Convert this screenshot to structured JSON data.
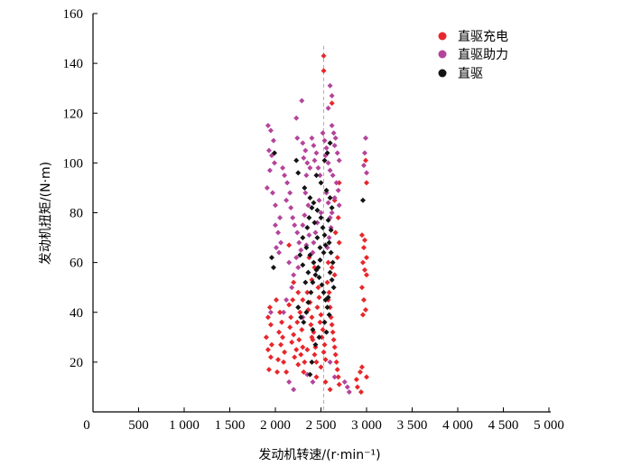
{
  "chart_data": {
    "type": "scatter",
    "title": "",
    "xlabel": "发动机转速/(r·min⁻¹)",
    "ylabel": "发动机扭矩/(N·m)",
    "xlim": [
      0,
      5000
    ],
    "ylim": [
      0,
      160
    ],
    "x_ticks": [
      500,
      1000,
      1500,
      2000,
      2500,
      3000,
      3500,
      4000,
      4500,
      5000
    ],
    "x_tick_labels": [
      "500",
      "1 000",
      "1 500",
      "2 000",
      "2 500",
      "3 000",
      "3 500",
      "4 000",
      "4 500",
      "5 000"
    ],
    "y_ticks": [
      20,
      40,
      60,
      80,
      100,
      120,
      140,
      160
    ],
    "y_tick_labels": [
      "20",
      "40",
      "60",
      "80",
      "100",
      "120",
      "140",
      "160"
    ],
    "origin_label": "0",
    "grid": false,
    "legend_position": "top-right",
    "reference_line": {
      "x": 2530,
      "style": "dashed"
    },
    "series": [
      {
        "name": "直驱充电",
        "color": "#e8262b",
        "points": [
          [
            2530,
            143
          ],
          [
            2530,
            137
          ],
          [
            2620,
            124
          ],
          [
            2700,
            92
          ],
          [
            2650,
            85
          ],
          [
            2990,
            101
          ],
          [
            3000,
            92
          ],
          [
            2950,
            71
          ],
          [
            2980,
            69
          ],
          [
            2970,
            66
          ],
          [
            3000,
            62
          ],
          [
            2960,
            60
          ],
          [
            2980,
            57
          ],
          [
            3000,
            55
          ],
          [
            2950,
            50
          ],
          [
            2970,
            45
          ],
          [
            2990,
            41
          ],
          [
            2960,
            39
          ],
          [
            2950,
            18
          ],
          [
            2930,
            16
          ],
          [
            3000,
            14
          ],
          [
            2900,
            10
          ],
          [
            2940,
            8
          ],
          [
            2890,
            13
          ],
          [
            1940,
            42
          ],
          [
            1920,
            38
          ],
          [
            1950,
            35
          ],
          [
            1900,
            30
          ],
          [
            1960,
            27
          ],
          [
            1920,
            25
          ],
          [
            1950,
            22
          ],
          [
            1930,
            17
          ],
          [
            2020,
            16
          ],
          [
            2010,
            45
          ],
          [
            2050,
            40
          ],
          [
            2070,
            36
          ],
          [
            2040,
            32
          ],
          [
            2080,
            30
          ],
          [
            2060,
            27
          ],
          [
            2100,
            24
          ],
          [
            2030,
            21
          ],
          [
            2090,
            20
          ],
          [
            2120,
            16
          ],
          [
            2150,
            43
          ],
          [
            2170,
            38
          ],
          [
            2160,
            34
          ],
          [
            2200,
            31
          ],
          [
            2180,
            28
          ],
          [
            2230,
            25
          ],
          [
            2210,
            22
          ],
          [
            2250,
            19
          ],
          [
            2190,
            45
          ],
          [
            2270,
            40
          ],
          [
            2240,
            36
          ],
          [
            2290,
            33
          ],
          [
            2260,
            29
          ],
          [
            2300,
            26
          ],
          [
            2280,
            23
          ],
          [
            2320,
            20
          ],
          [
            2310,
            16
          ],
          [
            2350,
            48
          ],
          [
            2380,
            44
          ],
          [
            2360,
            41
          ],
          [
            2400,
            38
          ],
          [
            2390,
            35
          ],
          [
            2420,
            32
          ],
          [
            2410,
            29
          ],
          [
            2440,
            26
          ],
          [
            2430,
            23
          ],
          [
            2450,
            20
          ],
          [
            2470,
            50
          ],
          [
            2480,
            46
          ],
          [
            2460,
            42
          ],
          [
            2500,
            39
          ],
          [
            2490,
            36
          ],
          [
            2520,
            33
          ],
          [
            2510,
            30
          ],
          [
            2540,
            27
          ],
          [
            2530,
            24
          ],
          [
            2550,
            21
          ],
          [
            2570,
            52
          ],
          [
            2590,
            48
          ],
          [
            2580,
            45
          ],
          [
            2600,
            42
          ],
          [
            2610,
            38
          ],
          [
            2620,
            35
          ],
          [
            2630,
            32
          ],
          [
            2640,
            29
          ],
          [
            2650,
            26
          ],
          [
            2660,
            23
          ],
          [
            2670,
            20
          ],
          [
            2680,
            17
          ],
          [
            2690,
            14
          ],
          [
            2700,
            11
          ],
          [
            2580,
            60
          ],
          [
            2620,
            58
          ],
          [
            2650,
            55
          ],
          [
            2680,
            62
          ],
          [
            2700,
            68
          ],
          [
            2660,
            72
          ],
          [
            2690,
            78
          ],
          [
            2400,
            53
          ],
          [
            2430,
            58
          ],
          [
            2370,
            62
          ],
          [
            2300,
            45
          ],
          [
            2250,
            48
          ],
          [
            2200,
            52
          ],
          [
            2150,
            67
          ],
          [
            2400,
            30
          ],
          [
            2350,
            25
          ],
          [
            2450,
            14
          ],
          [
            2500,
            18
          ],
          [
            2550,
            12
          ],
          [
            2600,
            9
          ]
        ]
      },
      {
        "name": "直驱助力",
        "color": "#b4449b",
        "points": [
          [
            2600,
            131
          ],
          [
            2620,
            127
          ],
          [
            2580,
            122
          ],
          [
            2290,
            125
          ],
          [
            2230,
            118
          ],
          [
            2240,
            110
          ],
          [
            1920,
            115
          ],
          [
            1950,
            113
          ],
          [
            1980,
            109
          ],
          [
            1930,
            105
          ],
          [
            1960,
            103
          ],
          [
            1990,
            100
          ],
          [
            1940,
            97
          ],
          [
            1910,
            90
          ],
          [
            1970,
            88
          ],
          [
            2000,
            83
          ],
          [
            2050,
            78
          ],
          [
            2000,
            75
          ],
          [
            2030,
            72
          ],
          [
            2060,
            68
          ],
          [
            2010,
            66
          ],
          [
            2040,
            64
          ],
          [
            2080,
            98
          ],
          [
            2100,
            95
          ],
          [
            2130,
            92
          ],
          [
            2160,
            88
          ],
          [
            2120,
            85
          ],
          [
            2170,
            82
          ],
          [
            2190,
            78
          ],
          [
            2210,
            75
          ],
          [
            2240,
            72
          ],
          [
            2260,
            68
          ],
          [
            2280,
            65
          ],
          [
            2230,
            62
          ],
          [
            2250,
            58
          ],
          [
            2300,
            108
          ],
          [
            2330,
            105
          ],
          [
            2310,
            102
          ],
          [
            2350,
            100
          ],
          [
            2380,
            98
          ],
          [
            2340,
            95
          ],
          [
            2400,
            110
          ],
          [
            2420,
            107
          ],
          [
            2450,
            104
          ],
          [
            2430,
            101
          ],
          [
            2470,
            98
          ],
          [
            2490,
            95
          ],
          [
            2520,
            112
          ],
          [
            2540,
            109
          ],
          [
            2560,
            106
          ],
          [
            2550,
            103
          ],
          [
            2580,
            100
          ],
          [
            2600,
            97
          ],
          [
            2620,
            115
          ],
          [
            2640,
            112
          ],
          [
            2660,
            110
          ],
          [
            2650,
            107
          ],
          [
            2680,
            104
          ],
          [
            2700,
            101
          ],
          [
            2630,
            95
          ],
          [
            2670,
            92
          ],
          [
            2690,
            89
          ],
          [
            2650,
            86
          ],
          [
            2700,
            83
          ],
          [
            2620,
            80
          ],
          [
            2560,
            88
          ],
          [
            2580,
            84
          ],
          [
            2600,
            78
          ],
          [
            2610,
            74
          ],
          [
            2590,
            70
          ],
          [
            2570,
            66
          ],
          [
            2480,
            85
          ],
          [
            2500,
            80
          ],
          [
            2460,
            76
          ],
          [
            2440,
            72
          ],
          [
            2420,
            68
          ],
          [
            2410,
            64
          ],
          [
            2330,
            88
          ],
          [
            2360,
            83
          ],
          [
            2320,
            79
          ],
          [
            2300,
            75
          ],
          [
            2370,
            71
          ],
          [
            2340,
            67
          ],
          [
            2990,
            110
          ],
          [
            2980,
            104
          ],
          [
            2970,
            99
          ],
          [
            3000,
            96
          ],
          [
            2150,
            60
          ],
          [
            2200,
            55
          ],
          [
            2180,
            50
          ],
          [
            2120,
            45
          ],
          [
            2090,
            40
          ],
          [
            1950,
            40
          ],
          [
            2250,
            42
          ],
          [
            2300,
            38
          ],
          [
            2350,
            15
          ],
          [
            2410,
            12
          ],
          [
            2600,
            20
          ],
          [
            2650,
            14
          ],
          [
            2790,
            10
          ],
          [
            2810,
            8
          ],
          [
            2760,
            12
          ],
          [
            2200,
            9
          ],
          [
            2150,
            12
          ]
        ]
      },
      {
        "name": "直驱",
        "color": "#141414",
        "points": [
          [
            1990,
            104
          ],
          [
            1960,
            62
          ],
          [
            1980,
            58
          ],
          [
            2230,
            101
          ],
          [
            2250,
            96
          ],
          [
            2320,
            90
          ],
          [
            2380,
            86
          ],
          [
            2420,
            84
          ],
          [
            2460,
            81
          ],
          [
            2500,
            78
          ],
          [
            2520,
            74
          ],
          [
            2540,
            71
          ],
          [
            2300,
            70
          ],
          [
            2340,
            66
          ],
          [
            2380,
            63
          ],
          [
            2420,
            60
          ],
          [
            2450,
            57
          ],
          [
            2480,
            54
          ],
          [
            2510,
            51
          ],
          [
            2530,
            48
          ],
          [
            2550,
            45
          ],
          [
            2570,
            42
          ],
          [
            2590,
            39
          ],
          [
            2560,
            89
          ],
          [
            2600,
            86
          ],
          [
            2620,
            82
          ],
          [
            2580,
            77
          ],
          [
            2610,
            73
          ],
          [
            2590,
            68
          ],
          [
            2610,
            64
          ],
          [
            2630,
            60
          ],
          [
            2600,
            56
          ],
          [
            2620,
            53
          ],
          [
            2640,
            50
          ],
          [
            2580,
            46
          ],
          [
            2250,
            42
          ],
          [
            2280,
            38
          ],
          [
            2310,
            36
          ],
          [
            2340,
            40
          ],
          [
            2360,
            44
          ],
          [
            2390,
            48
          ],
          [
            2410,
            52
          ],
          [
            2440,
            55
          ],
          [
            2470,
            58
          ],
          [
            2490,
            61
          ],
          [
            2530,
            64
          ],
          [
            2550,
            67
          ],
          [
            2350,
            74
          ],
          [
            2370,
            78
          ],
          [
            2400,
            82
          ],
          [
            2430,
            76
          ],
          [
            2460,
            70
          ],
          [
            2490,
            66
          ],
          [
            2540,
            36
          ],
          [
            2560,
            32
          ],
          [
            2480,
            30
          ],
          [
            2440,
            27
          ],
          [
            2410,
            33
          ],
          [
            2600,
            108
          ],
          [
            2570,
            104
          ],
          [
            2540,
            101
          ],
          [
            2960,
            85
          ],
          [
            2380,
            15
          ],
          [
            2400,
            20
          ],
          [
            2330,
            52
          ],
          [
            2360,
            56
          ],
          [
            2300,
            59
          ],
          [
            2270,
            63
          ],
          [
            2500,
            92
          ],
          [
            2450,
            95
          ]
        ]
      }
    ]
  },
  "legend": [
    {
      "label": "直驱充电",
      "color": "#e8262b"
    },
    {
      "label": "直驱助力",
      "color": "#b4449b"
    },
    {
      "label": "直驱",
      "color": "#141414"
    }
  ]
}
